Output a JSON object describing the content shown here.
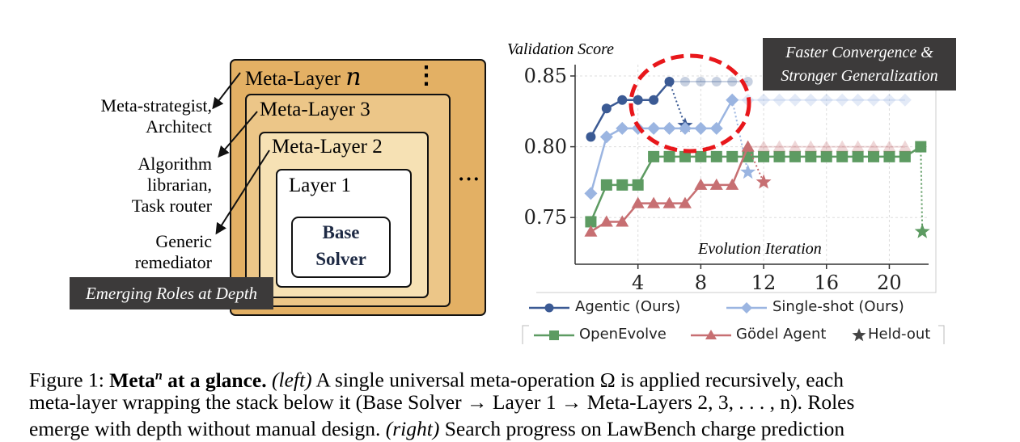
{
  "left_panel": {
    "meta_layer_n": {
      "label": "Meta-Layer",
      "var": "n"
    },
    "meta_layer_3": "Meta-Layer 3",
    "meta_layer_2": "Meta-Layer 2",
    "layer_1": "Layer 1",
    "base_solver_line1": "Base",
    "base_solver_line2": "Solver",
    "vdots": "⋮",
    "hdots": "···",
    "roles": [
      {
        "line1": "Meta-strategist,",
        "line2": "Architect"
      },
      {
        "line1": "Algorithm",
        "line2": "librarian,",
        "line3": "Task router"
      },
      {
        "line1": "Generic",
        "line2": "remediator"
      }
    ],
    "banner": "Emerging Roles at Depth",
    "colors": {
      "outer": "#e3b064",
      "layer3": "#ecc688",
      "layer2": "#f6e1b4",
      "inner": "#ffffff"
    }
  },
  "chart_data": {
    "type": "line",
    "ylabel": "Validation Score",
    "xlabel": "Evolution Iteration",
    "xlim": [
      0,
      22.5
    ],
    "ylim": [
      0.717,
      0.858
    ],
    "xticks": [
      "4",
      "8",
      "12",
      "16",
      "20"
    ],
    "yticks": [
      "0.75",
      "0.80",
      "0.85"
    ],
    "annotation_line1": "Faster Convergence &",
    "annotation_line2": "Stronger Generalization",
    "grid": true,
    "series": [
      {
        "name": "Agentic (Ours)",
        "color": "#3b5a94",
        "marker": "circle",
        "x": [
          1,
          2,
          3,
          4,
          5,
          6
        ],
        "y": [
          0.807,
          0.827,
          0.833,
          0.833,
          0.833,
          0.846
        ],
        "faded_x": [
          7,
          8,
          9,
          10,
          11
        ],
        "faded_y": [
          0.846,
          0.846,
          0.846,
          0.846,
          0.846
        ],
        "heldout": {
          "x": 7,
          "y": 0.815
        }
      },
      {
        "name": "Single-shot (Ours)",
        "color": "#9bb5e1",
        "marker": "diamond",
        "x": [
          1,
          2,
          3,
          4,
          5,
          6,
          7,
          8,
          9,
          10
        ],
        "y": [
          0.767,
          0.807,
          0.813,
          0.813,
          0.813,
          0.813,
          0.813,
          0.813,
          0.813,
          0.833
        ],
        "faded_x": [
          11,
          12,
          13,
          14,
          15,
          16,
          17,
          18,
          19,
          20,
          21
        ],
        "faded_y": [
          0.833,
          0.833,
          0.833,
          0.833,
          0.833,
          0.833,
          0.833,
          0.833,
          0.833,
          0.833,
          0.833
        ],
        "heldout": {
          "x": 11,
          "y": 0.782
        }
      },
      {
        "name": "OpenEvolve",
        "color": "#5d9b62",
        "marker": "square",
        "x": [
          1,
          2,
          3,
          4,
          5,
          6,
          7,
          8,
          9,
          10,
          11,
          12,
          13,
          14,
          15,
          16,
          17,
          18,
          19,
          20,
          21,
          22
        ],
        "y": [
          0.747,
          0.773,
          0.773,
          0.773,
          0.793,
          0.793,
          0.793,
          0.793,
          0.793,
          0.793,
          0.793,
          0.793,
          0.793,
          0.793,
          0.793,
          0.793,
          0.793,
          0.793,
          0.793,
          0.793,
          0.793,
          0.8
        ],
        "faded_x": [],
        "faded_y": [],
        "heldout": {
          "x": 22.1,
          "y": 0.74
        }
      },
      {
        "name": "Gödel Agent",
        "color": "#c76f72",
        "marker": "triangle",
        "x": [
          1,
          2,
          3,
          4,
          5,
          6,
          7,
          8,
          9,
          10,
          11
        ],
        "y": [
          0.74,
          0.747,
          0.747,
          0.76,
          0.76,
          0.76,
          0.76,
          0.773,
          0.773,
          0.773,
          0.8
        ],
        "faded_x": [
          12,
          13,
          14,
          15,
          16,
          17,
          18,
          19,
          20,
          21
        ],
        "faded_y": [
          0.8,
          0.8,
          0.8,
          0.8,
          0.8,
          0.8,
          0.8,
          0.8,
          0.8,
          0.8
        ],
        "heldout": {
          "x": 12,
          "y": 0.775
        }
      }
    ],
    "legend": [
      {
        "label": "Agentic (Ours)",
        "color": "#3b5a94",
        "marker": "circle"
      },
      {
        "label": "Single-shot (Ours)",
        "color": "#9bb5e1",
        "marker": "diamond"
      },
      {
        "label": "OpenEvolve",
        "color": "#5d9b62",
        "marker": "square"
      },
      {
        "label": "Gödel Agent",
        "color": "#c76f72",
        "marker": "triangle"
      },
      {
        "label": "Held-out",
        "color": "#444444",
        "marker": "star"
      }
    ]
  },
  "caption": {
    "line1_prefix": "Figure 1: ",
    "title_bold": "Meta",
    "title_sup": "n",
    "title_rest": " at a glance.",
    "left_tag": "(left)",
    "line1_rest": " A single universal meta-operation Ω is applied recursively, each",
    "line2": "meta-layer wrapping the stack below it (Base Solver → Layer 1 → Meta-Layers 2, 3, . . . , n). Roles",
    "line3_a": "emerge with depth without manual design. ",
    "right_tag": "(right)",
    "line3_b": " Search progress on LawBench charge prediction"
  }
}
